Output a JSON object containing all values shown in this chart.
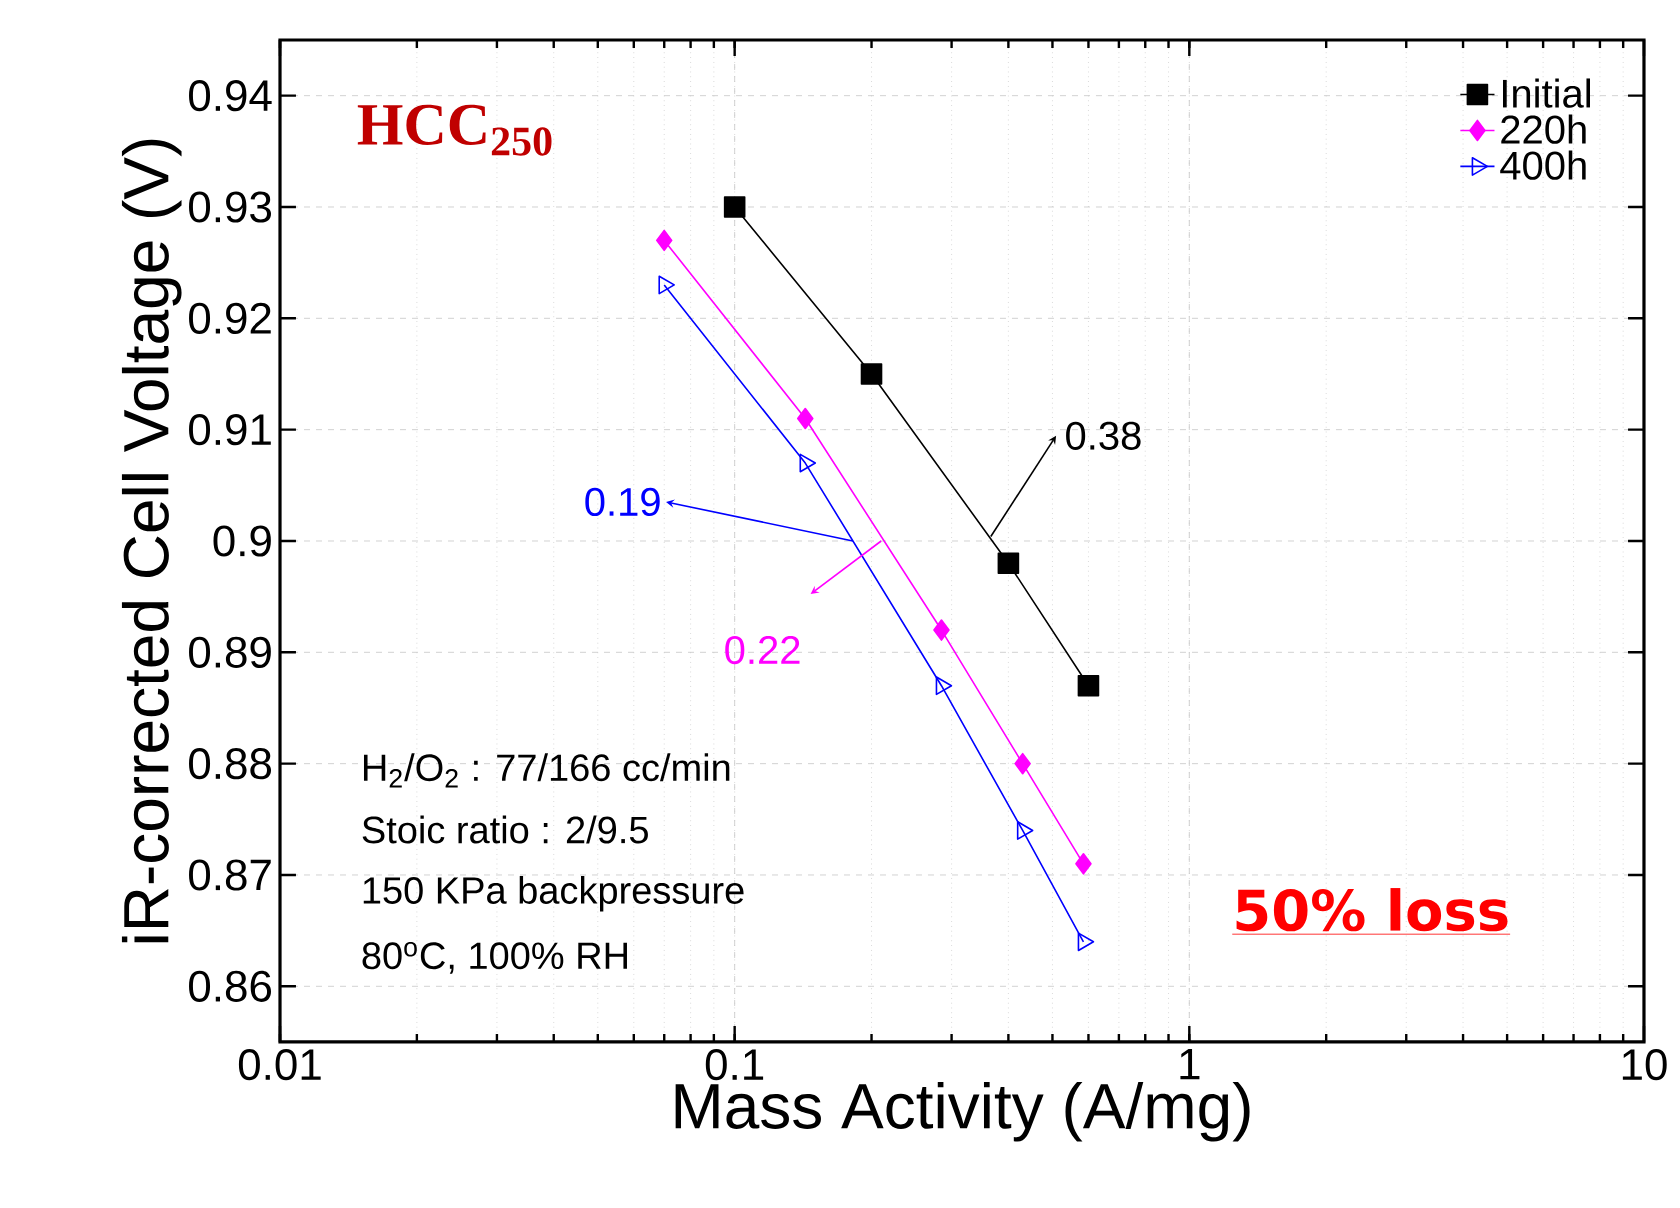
{
  "chart_data": {
    "type": "line",
    "xlabel": "Mass Activity (A/mg)",
    "ylabel": "iR-corrected Cell Voltage (V)",
    "log": "x",
    "grid": true,
    "legend": "top right",
    "xlim": [
      0.01,
      10
    ],
    "xticks": [
      0.01,
      0.1,
      1,
      10
    ],
    "ylim": [
      0.855,
      0.945
    ],
    "yticks": [
      0.86,
      0.87,
      0.88,
      0.89,
      0.9,
      0.91,
      0.92,
      0.93,
      0.94
    ],
    "series": [
      {
        "name": "Initial",
        "color": "#000000",
        "marker": "square",
        "x": [
          0.1,
          0.2,
          0.4,
          0.6
        ],
        "values": [
          0.93,
          0.915,
          0.898,
          0.887
        ]
      },
      {
        "name": "220h",
        "color": "#ff00ff",
        "marker": "diamond",
        "x": [
          0.07,
          0.143,
          0.285,
          0.43,
          0.585
        ],
        "values": [
          0.927,
          0.911,
          0.892,
          0.88,
          0.871
        ]
      },
      {
        "name": "400h",
        "color": "#0000ff",
        "marker": "triangle",
        "x": [
          0.07,
          0.143,
          0.285,
          0.43,
          0.585
        ],
        "values": [
          0.923,
          0.907,
          0.887,
          0.874,
          0.864
        ]
      }
    ],
    "annotations": [
      "HCC$_{250}$",
      "H$_{2}$/O$_{2}$ : 77/166 cc/min",
      "Stoic ratio : 2/9.5",
      "150 KPa backpressure",
      "80$^{o}$C, 100% RH",
      "50% loss",
      {
        "text": "0.38",
        "x": 0.366,
        "y": 0.9004
      },
      {
        "text": "0.19",
        "x": 0.182,
        "y": 0.9
      },
      {
        "text": "0.22",
        "x": 0.21,
        "y": 0.9
      }
    ]
  }
}
